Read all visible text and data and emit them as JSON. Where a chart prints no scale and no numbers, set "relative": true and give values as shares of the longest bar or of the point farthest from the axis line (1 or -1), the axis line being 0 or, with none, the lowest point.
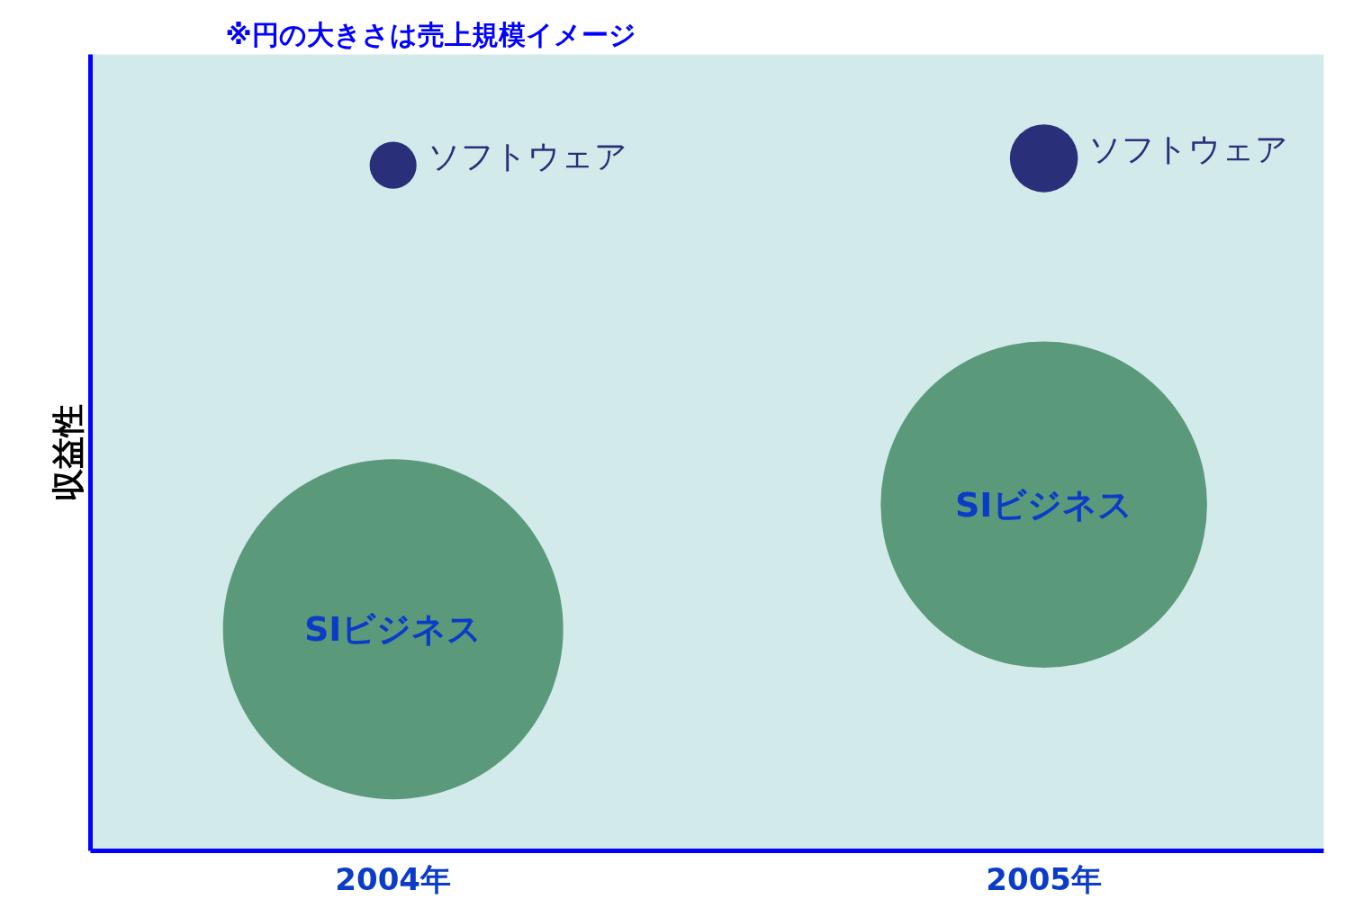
{
  "chart_data": {
    "type": "bubble",
    "title": "※円の大きさは売上規模イメージ",
    "ylabel": "収益性",
    "categories": [
      "2004年",
      "2005年"
    ],
    "relative": true,
    "legend": false,
    "grid": false,
    "series": [
      {
        "name": "ソフトウェア",
        "color": "#2a2f7a",
        "values": [
          0.99,
          1
        ],
        "sizes": [
          0.019,
          0.04
        ]
      },
      {
        "name": "SIビジネス",
        "color": "#5a9a7a",
        "values": [
          0.32,
          0.5
        ],
        "sizes": [
          1,
          0.92
        ]
      }
    ]
  }
}
